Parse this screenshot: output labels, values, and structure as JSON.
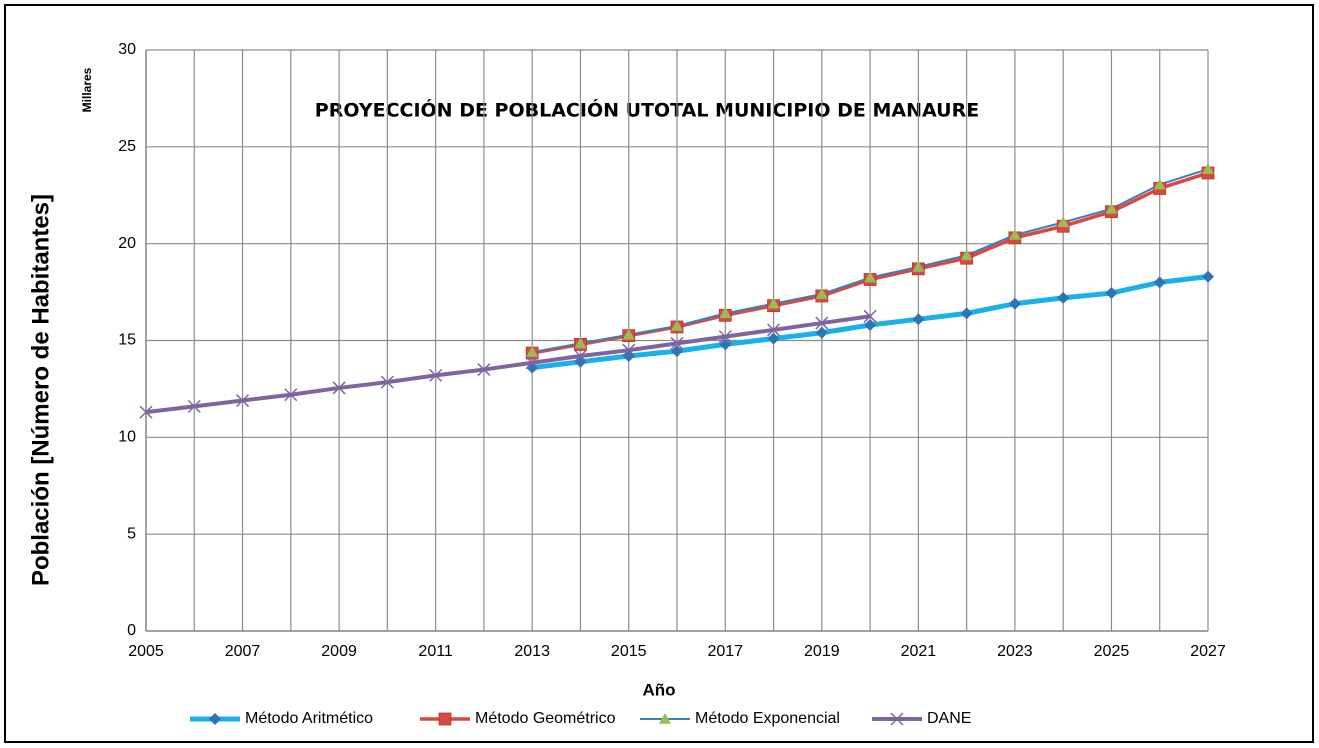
{
  "chart_data": {
    "type": "line",
    "title": "PROYECCIÓN DE POBLACIÓN UTOTAL MUNICIPIO DE MANAURE",
    "x_label": "Año",
    "y_label": "Población [Número de Habitantes]",
    "y_unit": "Millares",
    "x": [
      2005,
      2006,
      2007,
      2008,
      2009,
      2010,
      2011,
      2012,
      2013,
      2014,
      2015,
      2016,
      2017,
      2018,
      2019,
      2020,
      2021,
      2022,
      2023,
      2024,
      2025,
      2026,
      2027
    ],
    "series": [
      {
        "name": "Método Aritmético",
        "color": "#1ab0e8",
        "marker_color": "#2e75b6",
        "marker": "diamond",
        "values": [
          null,
          null,
          null,
          null,
          null,
          null,
          null,
          null,
          13.6,
          13.9,
          14.2,
          14.45,
          14.8,
          15.1,
          15.4,
          15.8,
          16.1,
          16.4,
          16.9,
          17.2,
          17.45,
          18.0,
          18.3
        ]
      },
      {
        "name": "Método Geométrico",
        "color": "#d9493f",
        "marker_color": "#d9493f",
        "marker": "square",
        "values": [
          null,
          null,
          null,
          null,
          null,
          null,
          null,
          null,
          14.35,
          14.8,
          15.25,
          15.7,
          16.3,
          16.8,
          17.3,
          18.15,
          18.7,
          19.25,
          20.3,
          20.9,
          21.65,
          22.85,
          23.65
        ]
      },
      {
        "name": "Método Exponencial",
        "color": "#3b7fbf",
        "marker_color": "#9bbb59",
        "marker": "triangle",
        "values": [
          null,
          null,
          null,
          null,
          null,
          null,
          null,
          null,
          14.4,
          14.85,
          15.3,
          15.75,
          16.4,
          16.9,
          17.4,
          18.25,
          18.8,
          19.4,
          20.45,
          21.1,
          21.8,
          23.05,
          23.85
        ]
      },
      {
        "name": "DANE",
        "color": "#8064a2",
        "marker_color": "#8064a2",
        "marker": "x",
        "values": [
          11.3,
          11.6,
          11.9,
          12.2,
          12.55,
          12.85,
          13.2,
          13.5,
          13.85,
          14.2,
          14.5,
          14.85,
          15.2,
          15.55,
          15.9,
          16.25,
          null,
          null,
          null,
          null,
          null,
          null,
          null
        ]
      }
    ],
    "xlim": [
      2005,
      2027
    ],
    "xticks": [
      2005,
      2007,
      2009,
      2011,
      2013,
      2015,
      2017,
      2019,
      2021,
      2023,
      2025,
      2027
    ],
    "xminor": [
      2006,
      2008,
      2010,
      2012,
      2014,
      2016,
      2018,
      2020,
      2022,
      2024,
      2026
    ],
    "ylim": [
      0,
      30
    ],
    "yticks": [
      0,
      5,
      10,
      15,
      20,
      25,
      30
    ],
    "grid": true,
    "legend": "bottom"
  }
}
